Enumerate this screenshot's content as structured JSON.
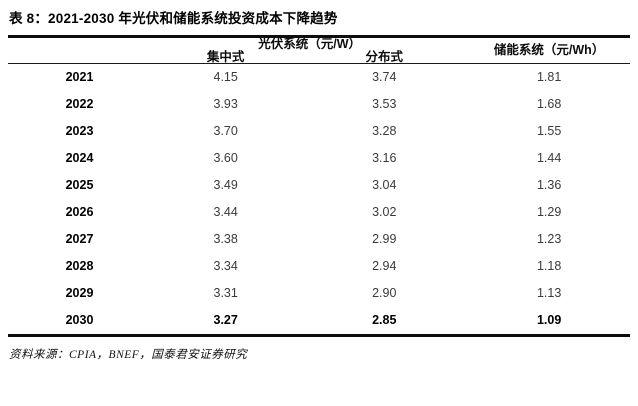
{
  "title": "表 8：2021-2030 年光伏和储能系统投资成本下降趋势",
  "table": {
    "group_headers": {
      "pv": "光伏系统（元/W）",
      "storage": "储能系统（元/Wh）"
    },
    "sub_headers": {
      "centralized": "集中式",
      "distributed": "分布式"
    },
    "rows": [
      {
        "year": "2021",
        "centralized": "4.15",
        "distributed": "3.74",
        "storage": "1.81",
        "bold": false
      },
      {
        "year": "2022",
        "centralized": "3.93",
        "distributed": "3.53",
        "storage": "1.68",
        "bold": false
      },
      {
        "year": "2023",
        "centralized": "3.70",
        "distributed": "3.28",
        "storage": "1.55",
        "bold": false
      },
      {
        "year": "2024",
        "centralized": "3.60",
        "distributed": "3.16",
        "storage": "1.44",
        "bold": false
      },
      {
        "year": "2025",
        "centralized": "3.49",
        "distributed": "3.04",
        "storage": "1.36",
        "bold": false
      },
      {
        "year": "2026",
        "centralized": "3.44",
        "distributed": "3.02",
        "storage": "1.29",
        "bold": false
      },
      {
        "year": "2027",
        "centralized": "3.38",
        "distributed": "2.99",
        "storage": "1.23",
        "bold": false
      },
      {
        "year": "2028",
        "centralized": "3.34",
        "distributed": "2.94",
        "storage": "1.18",
        "bold": false
      },
      {
        "year": "2029",
        "centralized": "3.31",
        "distributed": "2.90",
        "storage": "1.13",
        "bold": false
      },
      {
        "year": "2030",
        "centralized": "3.27",
        "distributed": "2.85",
        "storage": "1.09",
        "bold": true
      }
    ]
  },
  "source": "资料来源：CPIA，BNEF，国泰君安证券研究",
  "colors": {
    "rule": "#0d0d0d",
    "title_text": "#000000",
    "value_text": "#3a3a3a",
    "background": "#ffffff"
  }
}
